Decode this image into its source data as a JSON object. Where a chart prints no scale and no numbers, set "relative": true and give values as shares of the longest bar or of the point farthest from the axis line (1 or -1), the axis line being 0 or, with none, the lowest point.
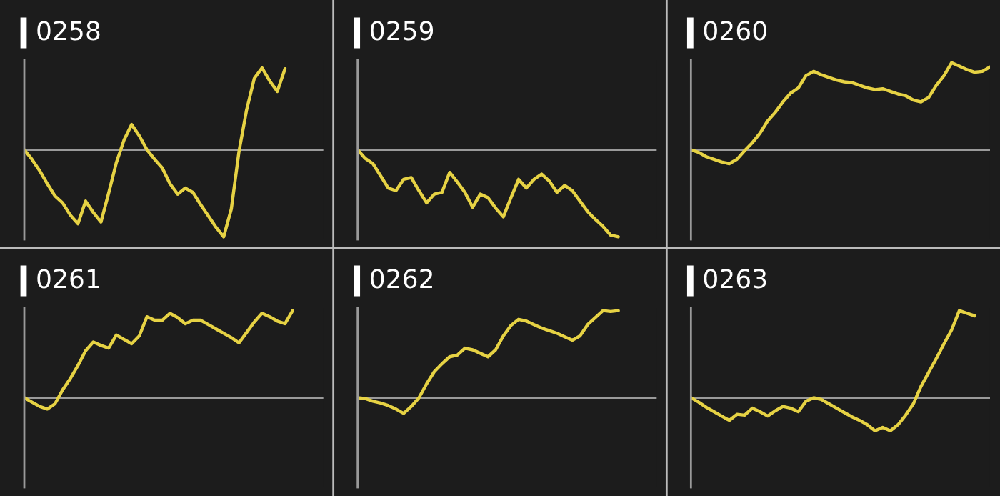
{
  "chart_data": [
    {
      "type": "line",
      "title": "0258",
      "relative": true,
      "categories": [
        null,
        null,
        null,
        null,
        null,
        null,
        null,
        null,
        null,
        null,
        null,
        null,
        null,
        null,
        null,
        null,
        null,
        null,
        null,
        null,
        null,
        null,
        null,
        null,
        null,
        null,
        null,
        null,
        null,
        null,
        null,
        null,
        null,
        null,
        null,
        null,
        null,
        null,
        null,
        null
      ],
      "series": [
        {
          "color": "#e6d244",
          "values": [
            0,
            -0.11,
            -0.24,
            -0.39,
            -0.53,
            -0.61,
            -0.75,
            -0.85,
            -0.59,
            -0.72,
            -0.83,
            -0.5,
            -0.15,
            0.11,
            0.29,
            0.16,
            0,
            -0.11,
            -0.21,
            -0.39,
            -0.51,
            -0.44,
            -0.49,
            -0.63,
            -0.76,
            -0.89,
            -1,
            -0.68,
            -0.02,
            0.46,
            0.82,
            0.94,
            0.79,
            0.67,
            0.93,
            null,
            null,
            null,
            null,
            null
          ]
        }
      ]
    },
    {
      "type": "line",
      "title": "0259",
      "relative": true,
      "categories": [
        null,
        null,
        null,
        null,
        null,
        null,
        null,
        null,
        null,
        null,
        null,
        null,
        null,
        null,
        null,
        null,
        null,
        null,
        null,
        null,
        null,
        null,
        null,
        null,
        null,
        null,
        null,
        null,
        null,
        null,
        null,
        null,
        null,
        null,
        null,
        null,
        null,
        null,
        null,
        null
      ],
      "series": [
        {
          "color": "#e6d244",
          "values": [
            0,
            -0.1,
            -0.16,
            -0.3,
            -0.44,
            -0.47,
            -0.34,
            -0.32,
            -0.47,
            -0.61,
            -0.51,
            -0.49,
            -0.26,
            -0.37,
            -0.49,
            -0.66,
            -0.51,
            -0.55,
            -0.67,
            -0.77,
            -0.55,
            -0.34,
            -0.44,
            -0.34,
            -0.28,
            -0.36,
            -0.49,
            -0.41,
            -0.47,
            -0.59,
            -0.71,
            -0.8,
            -0.88,
            -0.98,
            -1,
            null,
            null,
            null,
            null,
            null
          ]
        }
      ]
    },
    {
      "type": "line",
      "title": "0260",
      "relative": true,
      "categories": [
        null,
        null,
        null,
        null,
        null,
        null,
        null,
        null,
        null,
        null,
        null,
        null,
        null,
        null,
        null,
        null,
        null,
        null,
        null,
        null,
        null,
        null,
        null,
        null,
        null,
        null,
        null,
        null,
        null,
        null,
        null,
        null,
        null,
        null,
        null,
        null,
        null,
        null,
        null,
        null
      ],
      "series": [
        {
          "color": "#e6d244",
          "values": [
            0,
            -0.03,
            -0.08,
            -0.11,
            -0.14,
            -0.16,
            -0.11,
            -0.01,
            0.08,
            0.19,
            0.33,
            0.43,
            0.55,
            0.65,
            0.71,
            0.85,
            0.9,
            0.86,
            0.83,
            0.8,
            0.78,
            0.77,
            0.74,
            0.71,
            0.69,
            0.7,
            0.67,
            0.64,
            0.62,
            0.57,
            0.55,
            0.6,
            0.74,
            0.85,
            1,
            0.96,
            0.92,
            0.89,
            0.9,
            0.95
          ]
        }
      ]
    },
    {
      "type": "line",
      "title": "0261",
      "relative": true,
      "categories": [
        null,
        null,
        null,
        null,
        null,
        null,
        null,
        null,
        null,
        null,
        null,
        null,
        null,
        null,
        null,
        null,
        null,
        null,
        null,
        null,
        null,
        null,
        null,
        null,
        null,
        null,
        null,
        null,
        null,
        null,
        null,
        null,
        null,
        null,
        null,
        null,
        null,
        null,
        null,
        null
      ],
      "series": [
        {
          "color": "#e6d244",
          "values": [
            0,
            -0.05,
            -0.1,
            -0.13,
            -0.07,
            0.09,
            0.22,
            0.37,
            0.54,
            0.64,
            0.6,
            0.57,
            0.72,
            0.67,
            0.62,
            0.71,
            0.93,
            0.89,
            0.89,
            0.97,
            0.92,
            0.85,
            0.89,
            0.89,
            0.84,
            0.79,
            0.74,
            0.69,
            0.63,
            0.75,
            0.87,
            0.97,
            0.93,
            0.88,
            0.85,
            1,
            null,
            null,
            null,
            null
          ]
        }
      ]
    },
    {
      "type": "line",
      "title": "0262",
      "relative": true,
      "categories": [
        null,
        null,
        null,
        null,
        null,
        null,
        null,
        null,
        null,
        null,
        null,
        null,
        null,
        null,
        null,
        null,
        null,
        null,
        null,
        null,
        null,
        null,
        null,
        null,
        null,
        null,
        null,
        null,
        null,
        null,
        null,
        null,
        null,
        null,
        null,
        null,
        null,
        null,
        null,
        null
      ],
      "series": [
        {
          "color": "#e6d244",
          "values": [
            0,
            -0.01,
            -0.04,
            -0.06,
            -0.09,
            -0.13,
            -0.18,
            -0.1,
            0,
            0.16,
            0.3,
            0.39,
            0.47,
            0.49,
            0.57,
            0.55,
            0.51,
            0.47,
            0.55,
            0.71,
            0.83,
            0.9,
            0.88,
            0.84,
            0.8,
            0.77,
            0.74,
            0.7,
            0.66,
            0.71,
            0.84,
            0.92,
            1,
            0.99,
            1,
            null,
            null,
            null,
            null,
            null
          ]
        }
      ]
    },
    {
      "type": "line",
      "title": "0263",
      "relative": true,
      "categories": [
        null,
        null,
        null,
        null,
        null,
        null,
        null,
        null,
        null,
        null,
        null,
        null,
        null,
        null,
        null,
        null,
        null,
        null,
        null,
        null,
        null,
        null,
        null,
        null,
        null,
        null,
        null,
        null,
        null,
        null,
        null,
        null,
        null,
        null,
        null,
        null,
        null,
        null,
        null,
        null
      ],
      "series": [
        {
          "color": "#e6d244",
          "values": [
            0,
            -0.05,
            -0.11,
            -0.16,
            -0.21,
            -0.26,
            -0.19,
            -0.2,
            -0.12,
            -0.16,
            -0.21,
            -0.15,
            -0.1,
            -0.12,
            -0.16,
            -0.04,
            0,
            -0.02,
            -0.07,
            -0.12,
            -0.17,
            -0.22,
            -0.26,
            -0.31,
            -0.38,
            -0.34,
            -0.38,
            -0.31,
            -0.2,
            -0.07,
            0.13,
            0.29,
            0.45,
            0.62,
            0.78,
            1,
            0.97,
            0.94,
            null,
            null
          ]
        }
      ]
    }
  ]
}
